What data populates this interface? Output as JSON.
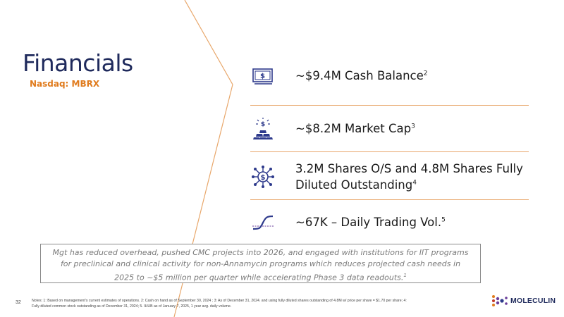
{
  "header": {
    "title": "Financials",
    "subtitle": "Nasdaq: MBRX"
  },
  "items": [
    {
      "icon": "cash-icon",
      "text": "~$9.4M Cash Balance",
      "note": "2"
    },
    {
      "icon": "gold-bars-icon",
      "text": "~$8.2M Market Cap",
      "note": "3"
    },
    {
      "icon": "network-dollar-icon",
      "text_line1": "3.2M Shares O/S and 4.8M Shares Fully",
      "text_line2": "Diluted Outstanding",
      "note": "4"
    },
    {
      "icon": "trading-curve-icon",
      "text": "~67K – Daily Trading Vol.",
      "note": "5"
    }
  ],
  "note_box": {
    "text": "Mgt has reduced overhead, pushed CMC projects into 2026, and engaged with institutions for IIT programs for preclinical and clinical activity for non-Annamycin programs which reduces projected cash needs in 2025 to ~$5 million per quarter while accelerating Phase 3 data readouts.",
    "note": "1"
  },
  "footer": {
    "page_number": "32",
    "footnotes_line1": "Notes: 1: Based on management’s current estimates of operations. 2: Cash on hand as of  September 30, 2024 ; 3: As of December 31, 2024.  and using fully diluted shares outstanding of 4.8M w/ price per share = $1.70 per share; 4:",
    "footnotes_line2": "Fully diluted common stock outstanding as of December 31, 2024; 5. IHUB as of January 7, 2025, 1 year avg. daily volume.",
    "logo_text": "MOLECULIN"
  },
  "colors": {
    "navy": "#1f2a5c",
    "orange": "#e07b1d",
    "icon_blue": "#2e3a8c",
    "purple": "#6a3d9a"
  }
}
